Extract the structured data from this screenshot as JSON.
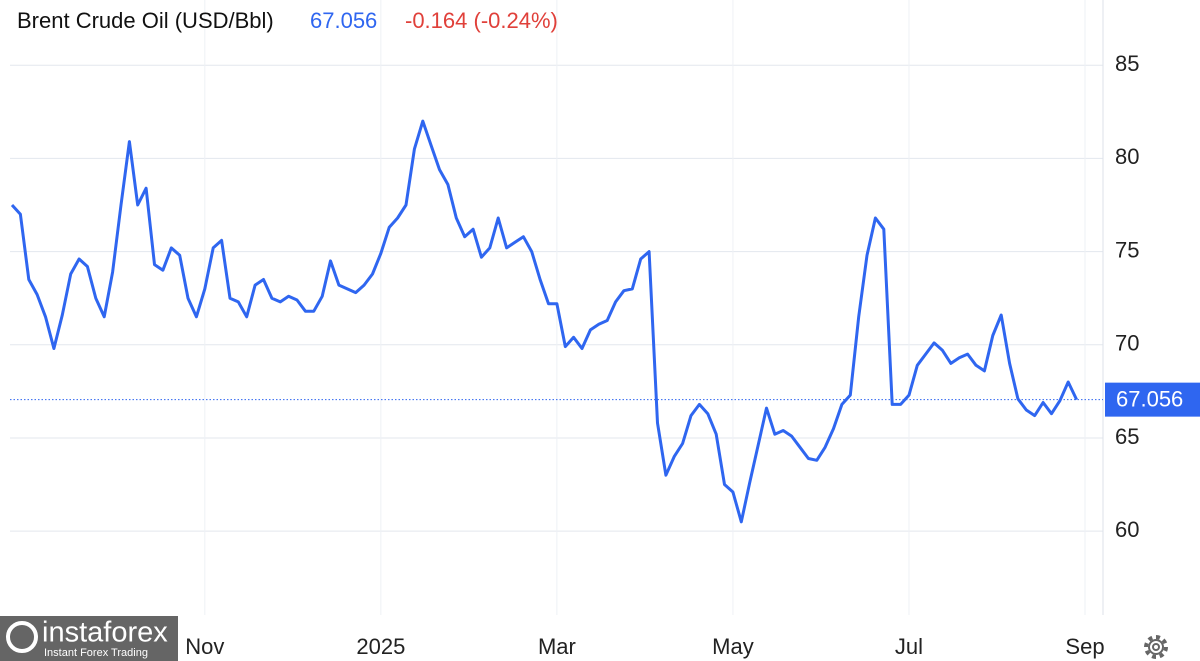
{
  "chart_data": {
    "type": "line",
    "title": "Brent Crude Oil (USD/Bbl)",
    "last_price": 67.056,
    "change": "-0.164 (-0.24%)",
    "categories": [
      null,
      null,
      null,
      null,
      null,
      null,
      null,
      null,
      null,
      null,
      null,
      null,
      null,
      null,
      null,
      null,
      null,
      null,
      null,
      null,
      null,
      null,
      null,
      "Nov",
      null,
      null,
      null,
      null,
      null,
      null,
      null,
      null,
      null,
      null,
      null,
      null,
      null,
      null,
      null,
      null,
      null,
      null,
      null,
      null,
      "2025",
      null,
      null,
      null,
      null,
      null,
      null,
      null,
      null,
      null,
      null,
      null,
      null,
      null,
      null,
      null,
      null,
      null,
      null,
      null,
      null,
      "Mar",
      null,
      null,
      null,
      null,
      null,
      null,
      null,
      null,
      null,
      null,
      null,
      null,
      null,
      null,
      null,
      null,
      null,
      null,
      null,
      null,
      "May",
      null,
      null,
      null,
      null,
      null,
      null,
      null,
      null,
      null,
      null,
      null,
      null,
      null,
      null,
      null,
      null,
      null,
      null,
      null,
      null,
      "Jul",
      null,
      null,
      null,
      null,
      null,
      null,
      null,
      null,
      null,
      null,
      null,
      null,
      null,
      null,
      null,
      null,
      null,
      null,
      null,
      null,
      "Sep"
    ],
    "series": [
      {
        "name": "Brent Crude Oil",
        "color": "#2f66f0",
        "values": [
          77.5,
          77,
          73.5,
          72.7,
          71.5,
          69.8,
          71.6,
          73.8,
          74.6,
          74.2,
          72.5,
          71.5,
          73.9,
          77.5,
          80.9,
          77.5,
          78.4,
          74.3,
          74,
          75.2,
          74.8,
          72.5,
          71.5,
          73,
          75.2,
          75.6,
          72.5,
          72.3,
          71.5,
          73.2,
          73.5,
          72.5,
          72.3,
          72.6,
          72.4,
          71.8,
          71.8,
          72.6,
          74.5,
          73.2,
          73,
          72.8,
          73.2,
          73.8,
          74.9,
          76.3,
          76.8,
          77.5,
          80.5,
          82,
          80.7,
          79.4,
          78.6,
          76.8,
          75.8,
          76.2,
          74.7,
          75.2,
          76.8,
          75.2,
          75.5,
          75.8,
          75,
          73.5,
          72.2,
          72.2,
          69.9,
          70.4,
          69.8,
          70.8,
          71.1,
          71.3,
          72.3,
          72.9,
          73,
          74.6,
          75,
          65.8,
          63,
          64,
          64.7,
          66.2,
          66.8,
          66.3,
          65.2,
          62.5,
          62.1,
          60.5,
          62.6,
          64.6,
          66.6,
          65.2,
          65.4,
          65.1,
          64.5,
          63.9,
          63.8,
          64.5,
          65.5,
          66.8,
          67.3,
          71.5,
          74.8,
          76.8,
          76.2,
          66.8,
          66.8,
          67.3,
          68.9,
          69.5,
          70.1,
          69.7,
          69,
          69.3,
          69.5,
          68.9,
          68.6,
          70.5,
          71.6,
          69,
          67.1,
          66.5,
          66.2,
          66.9,
          66.3,
          67,
          68,
          67.056,
          null
        ]
      }
    ],
    "ylim": [
      55.5,
      88.5
    ],
    "yticks": [
      60,
      65,
      70,
      75,
      80,
      85
    ],
    "grid": true
  },
  "watermark": {
    "brand": "instaforex",
    "tagline": "Instant Forex Trading"
  }
}
